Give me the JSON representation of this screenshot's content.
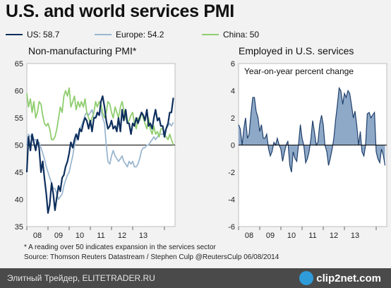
{
  "title": "U.S. and world services PMI",
  "footnote": "* A reading over 50 indicates expansion in the services sector",
  "source": "Source: Thomson Reuters Datastream / Stephen Culp @ReutersCulp 06/08/2014",
  "bottom_bar": {
    "site_credit": "Элитный Трейдер, ELITETRADER.RU",
    "watermark": "clip2net.com"
  },
  "colors": {
    "us": "#0d2e5c",
    "europe": "#9bb7d0",
    "china": "#8fcd6e",
    "employment_fill": "#8ea9c8",
    "employment_line": "#1f3f6a",
    "background": "#f2f2f2",
    "plot_bg": "#ffffff"
  },
  "legend": [
    {
      "name": "US:",
      "value": "58.7",
      "color": "#0d2e5c"
    },
    {
      "name": "Europe:",
      "value": "54.2",
      "color": "#9bb7d0"
    },
    {
      "name": "China:",
      "value": "50",
      "color": "#8fcd6e"
    }
  ],
  "chart_data": [
    {
      "type": "line",
      "title": "Non-manufacturing PMI*",
      "xlabel": "",
      "ylabel": "",
      "ylim": [
        35,
        65
      ],
      "yticks": [
        35,
        40,
        45,
        50,
        55,
        60,
        65
      ],
      "xlim": [
        2007.5,
        2014.5
      ],
      "xticks": [
        {
          "label": "08",
          "x": 2008
        },
        {
          "label": "09",
          "x": 2009
        },
        {
          "label": "10",
          "x": 2010
        },
        {
          "label": "11",
          "x": 2011
        },
        {
          "label": "12",
          "x": 2012
        },
        {
          "label": "13",
          "x": 2013
        }
      ],
      "reference_line": 50,
      "grid": false,
      "series": [
        {
          "name": "Europe",
          "color": "#9bb7d0",
          "x": [
            2007.5,
            2007.58,
            2007.67,
            2007.75,
            2007.83,
            2007.92,
            2008.0,
            2008.08,
            2008.17,
            2008.25,
            2008.33,
            2008.42,
            2008.5,
            2008.58,
            2008.67,
            2008.75,
            2008.83,
            2008.92,
            2009.0,
            2009.08,
            2009.17,
            2009.25,
            2009.33,
            2009.42,
            2009.5,
            2009.58,
            2009.67,
            2009.75,
            2009.83,
            2009.92,
            2010.0,
            2010.08,
            2010.17,
            2010.25,
            2010.33,
            2010.42,
            2010.5,
            2010.58,
            2010.67,
            2010.75,
            2010.83,
            2010.92,
            2011.0,
            2011.08,
            2011.17,
            2011.25,
            2011.33,
            2011.42,
            2011.5,
            2011.58,
            2011.67,
            2011.75,
            2011.83,
            2011.92,
            2012.0,
            2012.08,
            2012.17,
            2012.25,
            2012.33,
            2012.42,
            2012.5,
            2012.58,
            2012.67,
            2012.75,
            2012.83,
            2012.92,
            2013.0,
            2013.08,
            2013.17,
            2013.25,
            2013.33,
            2013.42,
            2013.5,
            2013.58,
            2013.67,
            2013.75,
            2013.83,
            2013.92,
            2014.0,
            2014.08,
            2014.17,
            2014.25,
            2014.33,
            2014.42
          ],
          "values": [
            50,
            52,
            51.5,
            52,
            51,
            51,
            50,
            50.5,
            49.5,
            48.5,
            47.5,
            46,
            45,
            44,
            43,
            42,
            42,
            41,
            40,
            40.5,
            41,
            42.5,
            43.5,
            44.5,
            45,
            46.5,
            48,
            50,
            51,
            52,
            53,
            53.5,
            54.5,
            55.5,
            56,
            55.5,
            56,
            56.5,
            55,
            55,
            55.5,
            56,
            56.5,
            55,
            54,
            50,
            47,
            46.5,
            48,
            49,
            48,
            47.5,
            47,
            47.5,
            48,
            47,
            46.5,
            46,
            47,
            46.5,
            47,
            46,
            46,
            46.5,
            47.5,
            49,
            49.5,
            49.5,
            50,
            50,
            50.5,
            51,
            51.5,
            51,
            51.5,
            52,
            52,
            52,
            52.5,
            53,
            53.5,
            54,
            53.5,
            54.2
          ]
        },
        {
          "name": "China",
          "color": "#8fcd6e",
          "x": [
            2007.5,
            2007.58,
            2007.67,
            2007.75,
            2007.83,
            2007.92,
            2008.0,
            2008.08,
            2008.17,
            2008.25,
            2008.33,
            2008.42,
            2008.5,
            2008.58,
            2008.67,
            2008.75,
            2008.83,
            2008.92,
            2009.0,
            2009.08,
            2009.17,
            2009.25,
            2009.33,
            2009.42,
            2009.5,
            2009.58,
            2009.67,
            2009.75,
            2009.83,
            2009.92,
            2010.0,
            2010.08,
            2010.17,
            2010.25,
            2010.33,
            2010.42,
            2010.5,
            2010.58,
            2010.67,
            2010.75,
            2010.83,
            2010.92,
            2011.0,
            2011.08,
            2011.17,
            2011.25,
            2011.33,
            2011.42,
            2011.5,
            2011.58,
            2011.67,
            2011.75,
            2011.83,
            2011.92,
            2012.0,
            2012.08,
            2012.17,
            2012.25,
            2012.33,
            2012.42,
            2012.5,
            2012.58,
            2012.67,
            2012.75,
            2012.83,
            2012.92,
            2013.0,
            2013.08,
            2013.17,
            2013.25,
            2013.33,
            2013.42,
            2013.5,
            2013.58,
            2013.67,
            2013.75,
            2013.83,
            2013.92,
            2014.0,
            2014.08,
            2014.17,
            2014.25,
            2014.33,
            2014.42
          ],
          "values": [
            59.5,
            57,
            58.5,
            56,
            58,
            55,
            56,
            58,
            57.5,
            55.5,
            54,
            53.5,
            54,
            53,
            51,
            51,
            51.5,
            53,
            55,
            57,
            56,
            59,
            60,
            59,
            60.5,
            57,
            58,
            59,
            56.5,
            58,
            57,
            58,
            57,
            58.5,
            56,
            55,
            54,
            55,
            56,
            58,
            57,
            58,
            57.5,
            56,
            55,
            56,
            58,
            57.5,
            56,
            55,
            57,
            56,
            55,
            57,
            58,
            56.5,
            55,
            54,
            54.5,
            55.5,
            56,
            54,
            53,
            55,
            54.5,
            56,
            55,
            54,
            53,
            55,
            53,
            52,
            53.5,
            52,
            52.5,
            51.5,
            53,
            53,
            52,
            51.5,
            51,
            52,
            51,
            50
          ]
        },
        {
          "name": "US",
          "color": "#0d2e5c",
          "x": [
            2007.5,
            2007.58,
            2007.67,
            2007.75,
            2007.83,
            2007.92,
            2008.0,
            2008.08,
            2008.17,
            2008.25,
            2008.33,
            2008.42,
            2008.5,
            2008.58,
            2008.67,
            2008.75,
            2008.83,
            2008.92,
            2009.0,
            2009.08,
            2009.17,
            2009.25,
            2009.33,
            2009.42,
            2009.5,
            2009.58,
            2009.67,
            2009.75,
            2009.83,
            2009.92,
            2010.0,
            2010.08,
            2010.17,
            2010.25,
            2010.33,
            2010.42,
            2010.5,
            2010.58,
            2010.67,
            2010.75,
            2010.83,
            2010.92,
            2011.0,
            2011.08,
            2011.17,
            2011.25,
            2011.33,
            2011.42,
            2011.5,
            2011.58,
            2011.67,
            2011.75,
            2011.83,
            2011.92,
            2012.0,
            2012.08,
            2012.17,
            2012.25,
            2012.33,
            2012.42,
            2012.5,
            2012.58,
            2012.67,
            2012.75,
            2012.83,
            2012.92,
            2013.0,
            2013.08,
            2013.17,
            2013.25,
            2013.33,
            2013.42,
            2013.5,
            2013.58,
            2013.67,
            2013.75,
            2013.83,
            2013.92,
            2014.0,
            2014.08,
            2014.17,
            2014.25,
            2014.33,
            2014.42
          ],
          "values": [
            45,
            51.5,
            49,
            52,
            50.5,
            49,
            51,
            49.5,
            45,
            47,
            44,
            41,
            37.5,
            39,
            43,
            41,
            38,
            40.5,
            42.5,
            41.5,
            44,
            44.5,
            46,
            47,
            48.5,
            50.5,
            49.5,
            51,
            52,
            51,
            53,
            52.5,
            54,
            55,
            54.5,
            53,
            54.5,
            52.5,
            55,
            55,
            56,
            55.5,
            58,
            59,
            57,
            54.5,
            53,
            53.5,
            54.5,
            53,
            53.5,
            52.5,
            55,
            52.5,
            56.5,
            54.5,
            56.5,
            54,
            54,
            52,
            54,
            53.5,
            55,
            54,
            55,
            56,
            55.5,
            54.5,
            56.5,
            53.5,
            54,
            53,
            55,
            56.5,
            54.5,
            55,
            53.5,
            53.5,
            51.5,
            53,
            54,
            56,
            56,
            58.7
          ]
        }
      ]
    },
    {
      "type": "area",
      "title": "Employed in U.S. services",
      "subtitle": "Year-on-year percent change",
      "xlabel": "",
      "ylabel": "",
      "ylim": [
        -6,
        6
      ],
      "yticks": [
        -6,
        -4,
        -2,
        0,
        2,
        4,
        6
      ],
      "xlim": [
        2007.5,
        2014.5
      ],
      "xticks": [
        {
          "label": "08",
          "x": 2008
        },
        {
          "label": "09",
          "x": 2009
        },
        {
          "label": "10",
          "x": 2010
        },
        {
          "label": "11",
          "x": 2011
        },
        {
          "label": "12",
          "x": 2012
        },
        {
          "label": "13",
          "x": 2013
        }
      ],
      "grid": false,
      "series": [
        {
          "name": "Employed in U.S. services",
          "color": "#1f3f6a",
          "x": [
            2007.5,
            2007.58,
            2007.67,
            2007.75,
            2007.83,
            2007.92,
            2008.0,
            2008.08,
            2008.17,
            2008.25,
            2008.33,
            2008.42,
            2008.5,
            2008.58,
            2008.67,
            2008.75,
            2008.83,
            2008.92,
            2009.0,
            2009.08,
            2009.17,
            2009.25,
            2009.33,
            2009.42,
            2009.5,
            2009.58,
            2009.67,
            2009.75,
            2009.83,
            2009.92,
            2010.0,
            2010.08,
            2010.17,
            2010.25,
            2010.33,
            2010.42,
            2010.5,
            2010.58,
            2010.67,
            2010.75,
            2010.83,
            2010.92,
            2011.0,
            2011.08,
            2011.17,
            2011.25,
            2011.33,
            2011.42,
            2011.5,
            2011.58,
            2011.67,
            2011.75,
            2011.83,
            2011.92,
            2012.0,
            2012.08,
            2012.17,
            2012.25,
            2012.33,
            2012.42,
            2012.5,
            2012.58,
            2012.67,
            2012.75,
            2012.83,
            2012.92,
            2013.0,
            2013.08,
            2013.17,
            2013.25,
            2013.33,
            2013.42,
            2013.5,
            2013.58,
            2013.67,
            2013.75,
            2013.83,
            2013.92,
            2014.0,
            2014.08,
            2014.17,
            2014.25,
            2014.33,
            2014.42
          ],
          "values": [
            1.5,
            1.2,
            0,
            1.2,
            2,
            0.5,
            0.8,
            2.2,
            3.5,
            3.5,
            2.5,
            2,
            1,
            1.5,
            0.5,
            0.5,
            0.8,
            -0.3,
            -0.8,
            -0.5,
            0.2,
            0,
            0.5,
            0,
            -0.3,
            -1.2,
            -0.5,
            0,
            0.3,
            -1.5,
            -2,
            -0.5,
            -1,
            -1.2,
            0,
            1.5,
            0.5,
            0,
            -1.3,
            -1,
            -0.5,
            0.5,
            1.8,
            1,
            0,
            0.2,
            1.5,
            2.2,
            1.5,
            0,
            -0.5,
            -1.5,
            -1,
            -0.3,
            0.5,
            1.8,
            3,
            4.2,
            4,
            3,
            3.8,
            3.5,
            4,
            3.8,
            3,
            2,
            2.5,
            1.5,
            0,
            1,
            -0.5,
            -0.8,
            0,
            2.3,
            2.4,
            2,
            2.2,
            2.4,
            -0.5,
            -1,
            -1.3,
            -0.3,
            -0.7,
            -1.5
          ]
        }
      ]
    }
  ]
}
